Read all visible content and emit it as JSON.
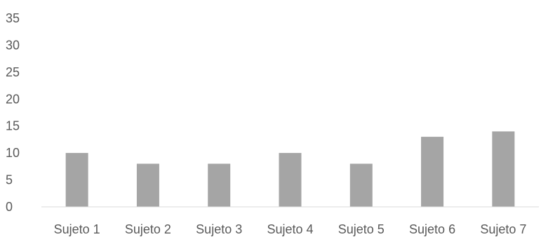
{
  "chart_data": {
    "type": "bar",
    "title": "",
    "xlabel": "",
    "ylabel": "",
    "categories": [
      "Sujeto 1",
      "Sujeto 2",
      "Sujeto 3",
      "Sujeto 4",
      "Sujeto 5",
      "Sujeto 6",
      "Sujeto 7"
    ],
    "values": [
      10,
      8,
      8,
      10,
      8,
      13,
      14
    ],
    "ylim": [
      0,
      35
    ],
    "yticks": [
      "0",
      "5",
      "10",
      "15",
      "20",
      "25",
      "30",
      "35"
    ],
    "grid": false,
    "legend": "none",
    "bar_color": "#a5a5a5",
    "axis_color": "#d9d9d9"
  }
}
